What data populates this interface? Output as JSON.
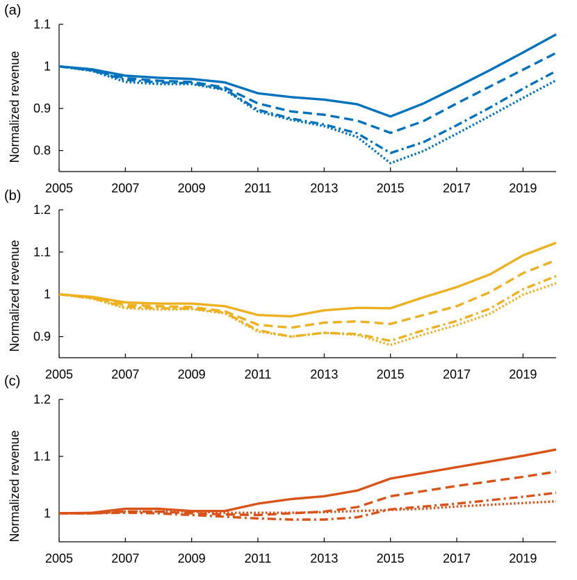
{
  "chart_data": [
    {
      "type": "line",
      "panel_label": "(a)",
      "ylabel": "Normalized revenue",
      "xlabel": "",
      "x": [
        2005,
        2006,
        2007,
        2008,
        2009,
        2010,
        2011,
        2012,
        2013,
        2014,
        2015,
        2016,
        2017,
        2018,
        2019,
        2020
      ],
      "xlim": [
        2005,
        2020
      ],
      "xticks": [
        "2005",
        "2007",
        "2009",
        "2011",
        "2013",
        "2015",
        "2017",
        "2019"
      ],
      "ylim": [
        0.75,
        1.1
      ],
      "yticks": [
        "0.8",
        "0.9",
        "1",
        "1.1"
      ],
      "color": "#0072bd",
      "series": [
        {
          "name": "solid",
          "dash": "solid",
          "values": [
            1.0,
            0.993,
            0.978,
            0.973,
            0.97,
            0.962,
            0.936,
            0.927,
            0.921,
            0.91,
            0.881,
            0.912,
            0.951,
            0.991,
            1.033,
            1.076
          ]
        },
        {
          "name": "dashed",
          "dash": "dashed",
          "values": [
            1.0,
            0.991,
            0.972,
            0.966,
            0.963,
            0.95,
            0.912,
            0.893,
            0.885,
            0.871,
            0.842,
            0.87,
            0.912,
            0.952,
            0.992,
            1.032
          ]
        },
        {
          "name": "dashdot",
          "dash": "dashdot",
          "values": [
            1.0,
            0.99,
            0.968,
            0.962,
            0.96,
            0.946,
            0.897,
            0.876,
            0.862,
            0.841,
            0.794,
            0.82,
            0.86,
            0.902,
            0.947,
            0.989
          ]
        },
        {
          "name": "dotted",
          "dash": "dotted",
          "values": [
            1.0,
            0.989,
            0.963,
            0.958,
            0.958,
            0.944,
            0.893,
            0.873,
            0.858,
            0.832,
            0.77,
            0.799,
            0.84,
            0.882,
            0.925,
            0.967
          ]
        }
      ]
    },
    {
      "type": "line",
      "panel_label": "(b)",
      "ylabel": "Normalized revenue",
      "xlabel": "",
      "x": [
        2005,
        2006,
        2007,
        2008,
        2009,
        2010,
        2011,
        2012,
        2013,
        2014,
        2015,
        2016,
        2017,
        2018,
        2019,
        2020
      ],
      "xlim": [
        2005,
        2020
      ],
      "xticks": [
        "2005",
        "2007",
        "2009",
        "2011",
        "2013",
        "2015",
        "2017",
        "2019"
      ],
      "ylim": [
        0.85,
        1.2
      ],
      "yticks": [
        "0.9",
        "1",
        "1.1",
        "1.2"
      ],
      "color": "#edb120",
      "series": [
        {
          "name": "solid",
          "dash": "solid",
          "values": [
            1.0,
            0.994,
            0.981,
            0.978,
            0.978,
            0.972,
            0.951,
            0.948,
            0.962,
            0.968,
            0.967,
            0.993,
            1.017,
            1.047,
            1.092,
            1.122
          ]
        },
        {
          "name": "dashed",
          "dash": "dashed",
          "values": [
            1.0,
            0.992,
            0.975,
            0.972,
            0.97,
            0.96,
            0.928,
            0.921,
            0.933,
            0.936,
            0.93,
            0.951,
            0.972,
            1.005,
            1.05,
            1.081
          ]
        },
        {
          "name": "dashdot",
          "dash": "dashdot",
          "values": [
            1.0,
            0.991,
            0.97,
            0.967,
            0.966,
            0.957,
            0.915,
            0.9,
            0.909,
            0.906,
            0.89,
            0.915,
            0.937,
            0.966,
            1.012,
            1.043
          ]
        },
        {
          "name": "dotted",
          "dash": "dotted",
          "values": [
            1.0,
            0.99,
            0.967,
            0.964,
            0.965,
            0.955,
            0.912,
            0.9,
            0.909,
            0.904,
            0.88,
            0.905,
            0.927,
            0.954,
            0.999,
            1.026
          ]
        }
      ]
    },
    {
      "type": "line",
      "panel_label": "(c)",
      "ylabel": "Normalized revenue",
      "xlabel": "",
      "x": [
        2005,
        2006,
        2007,
        2008,
        2009,
        2010,
        2011,
        2012,
        2013,
        2014,
        2015,
        2016,
        2017,
        2018,
        2019,
        2020
      ],
      "xlim": [
        2005,
        2020
      ],
      "xticks": [
        "2005",
        "2007",
        "2009",
        "2011",
        "2013",
        "2015",
        "2017",
        "2019"
      ],
      "ylim": [
        0.95,
        1.2
      ],
      "yticks": [
        "1",
        "1.1",
        "1.2"
      ],
      "color": "#d95319",
      "series": [
        {
          "name": "solid",
          "dash": "solid",
          "values": [
            1.0,
            1.001,
            1.008,
            1.008,
            1.004,
            1.004,
            1.017,
            1.025,
            1.03,
            1.04,
            1.061,
            1.071,
            1.081,
            1.091,
            1.101,
            1.112
          ]
        },
        {
          "name": "dashed",
          "dash": "dashed",
          "values": [
            1.0,
            1.0,
            1.003,
            1.003,
            1.0,
            0.998,
            0.997,
            1.0,
            1.003,
            1.011,
            1.03,
            1.039,
            1.048,
            1.056,
            1.064,
            1.073
          ]
        },
        {
          "name": "dashdot",
          "dash": "dashdot",
          "values": [
            1.0,
            1.0,
            1.001,
            1.0,
            0.997,
            0.994,
            0.991,
            0.989,
            0.989,
            0.993,
            1.007,
            1.012,
            1.017,
            1.023,
            1.029,
            1.036
          ]
        },
        {
          "name": "dotted",
          "dash": "dotted",
          "values": [
            1.0,
            1.0,
            1.003,
            1.003,
            1.003,
            1.001,
            1.001,
            1.001,
            1.002,
            1.004,
            1.006,
            1.008,
            1.012,
            1.015,
            1.018,
            1.021
          ]
        }
      ]
    }
  ]
}
